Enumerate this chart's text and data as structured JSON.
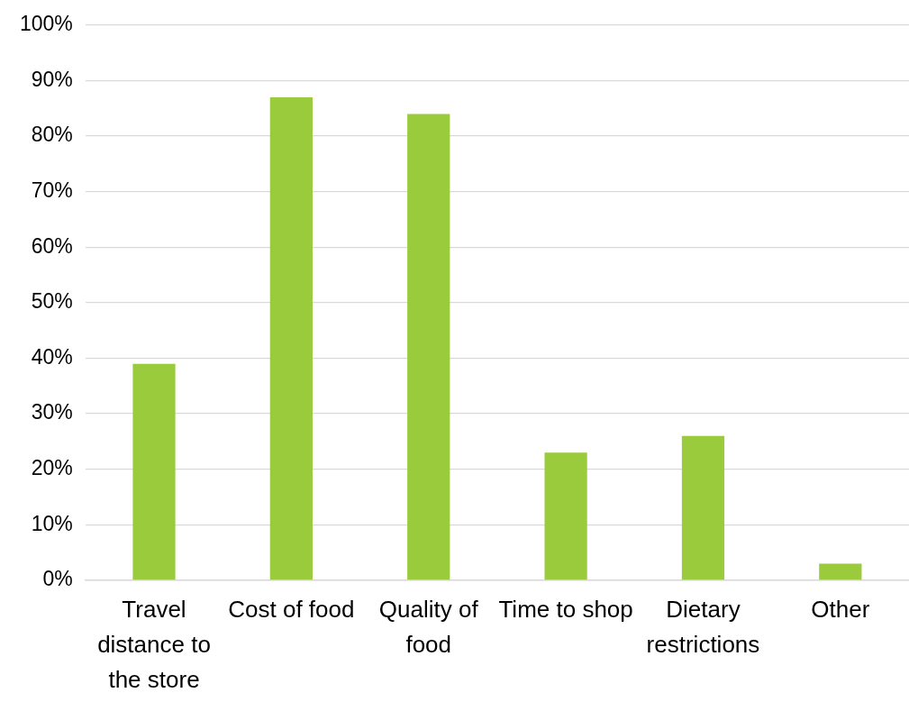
{
  "chart_data": {
    "type": "bar",
    "categories": [
      "Travel distance to the store",
      "Cost of food",
      "Quality of food",
      "Time to shop",
      "Dietary restrictions",
      "Other"
    ],
    "values": [
      39,
      87,
      84,
      23,
      26,
      3
    ],
    "color": "#9acb3c",
    "ylim": [
      0,
      100
    ],
    "yticks": [
      {
        "value": 0,
        "label": "0%"
      },
      {
        "value": 10,
        "label": "10%"
      },
      {
        "value": 20,
        "label": "20%"
      },
      {
        "value": 30,
        "label": "30%"
      },
      {
        "value": 40,
        "label": "40%"
      },
      {
        "value": 50,
        "label": "50%"
      },
      {
        "value": 60,
        "label": "60%"
      },
      {
        "value": 70,
        "label": "70%"
      },
      {
        "value": 80,
        "label": "80%"
      },
      {
        "value": 90,
        "label": "90%"
      },
      {
        "value": 100,
        "label": "100%"
      }
    ],
    "grid": "y",
    "legend": false
  }
}
